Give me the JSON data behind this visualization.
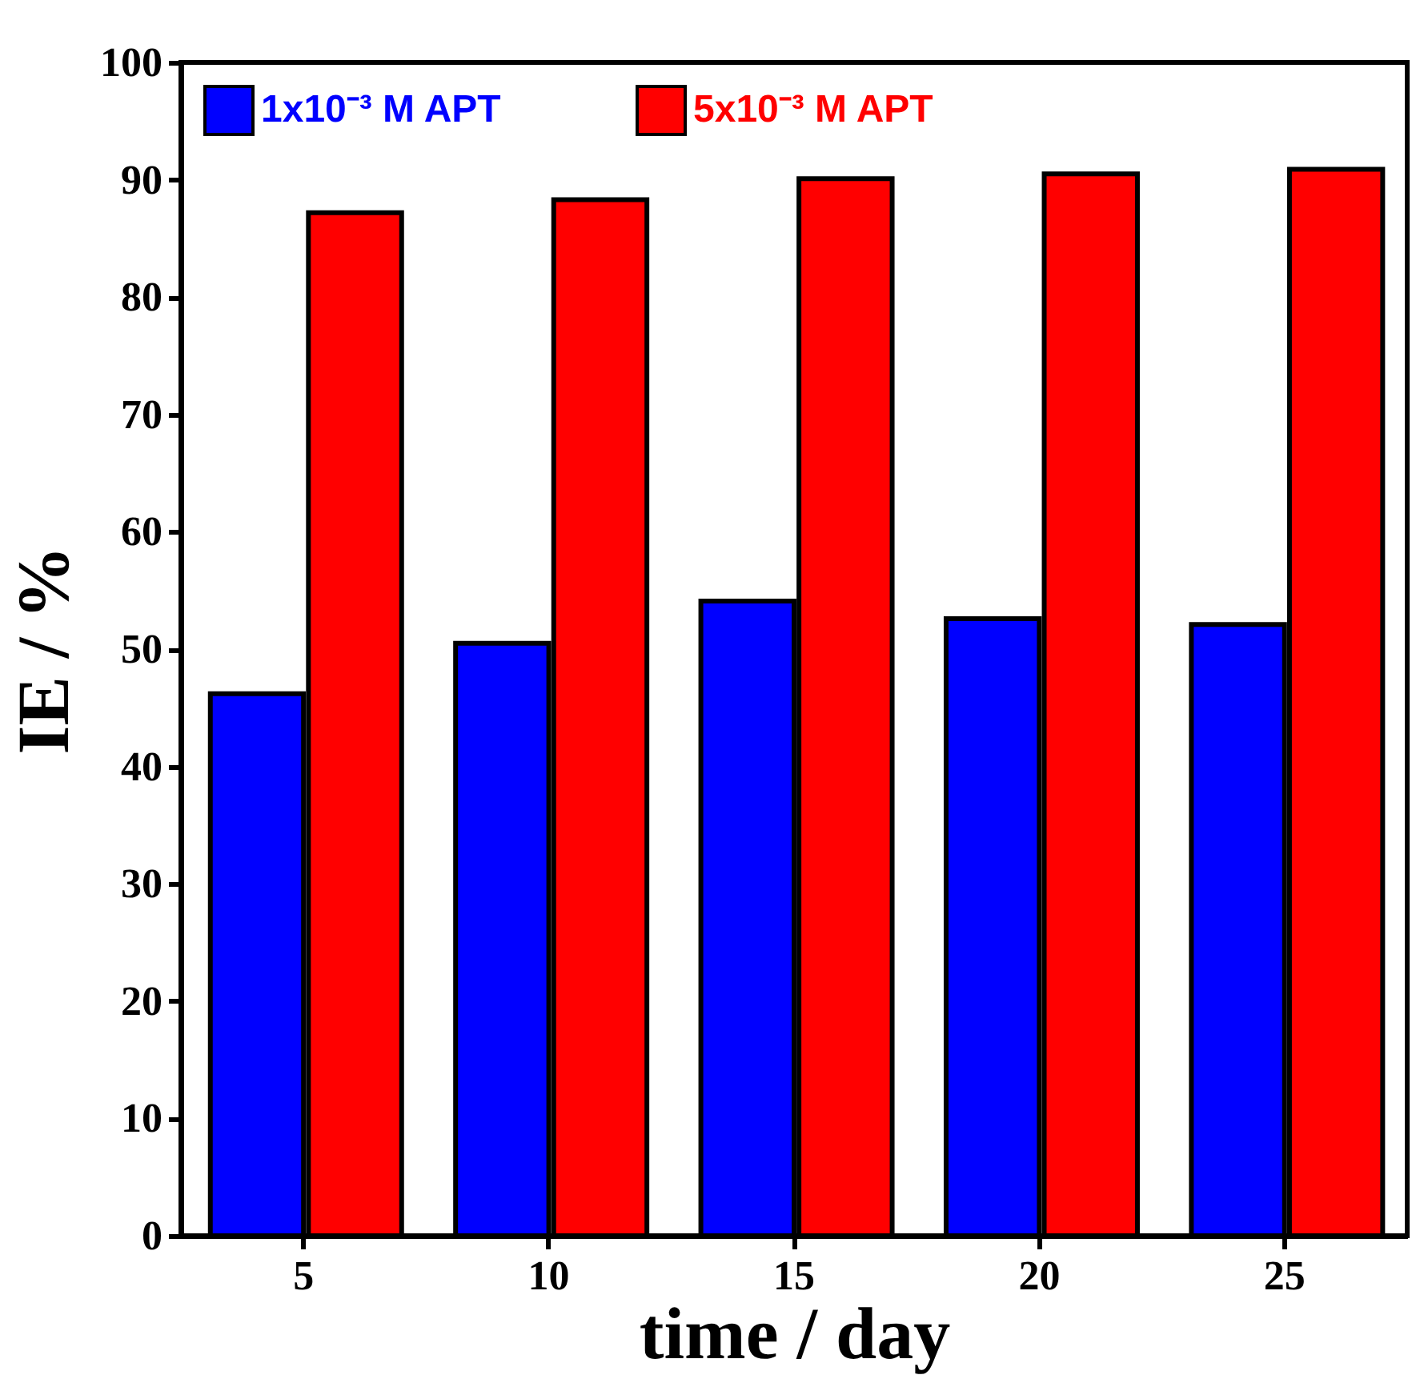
{
  "chart_data": {
    "type": "bar",
    "xlabel": "time / day",
    "ylabel": "IE / %",
    "categories": [
      "5",
      "10",
      "15",
      "20",
      "25"
    ],
    "series": [
      {
        "name": "1x10⁻³ M APT",
        "color": "#0000ff",
        "values": [
          46.2,
          50.5,
          54.1,
          52.6,
          52.1
        ]
      },
      {
        "name": "5x10⁻³ M APT",
        "color": "#ff0000",
        "values": [
          87.2,
          88.3,
          90.1,
          90.5,
          90.9
        ]
      }
    ],
    "ylim": [
      0,
      100
    ],
    "yticks": [
      0,
      10,
      20,
      30,
      40,
      50,
      60,
      70,
      80,
      90,
      100
    ],
    "grid": false,
    "legend": "top"
  }
}
